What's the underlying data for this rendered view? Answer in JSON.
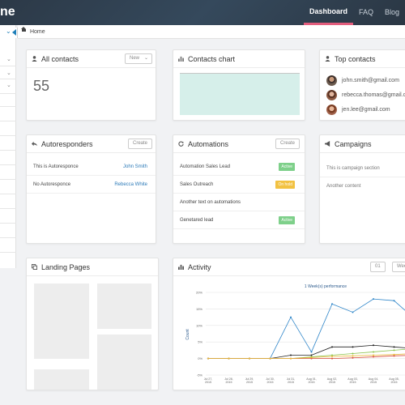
{
  "topbar": {
    "brand": "ne",
    "nav": [
      "Dashboard",
      "FAQ",
      "Blog"
    ]
  },
  "breadcrumb": {
    "home": "Home"
  },
  "all_contacts": {
    "title": "All contacts",
    "filter": "New",
    "count": "55"
  },
  "contacts_chart": {
    "title": "Contacts chart"
  },
  "top_contacts": {
    "title": "Top contacts",
    "items": [
      {
        "email": "john.smith@gmail.com"
      },
      {
        "email": "rebecca.thomas@gmail.com"
      },
      {
        "email": "jen.lee@gmail.com"
      }
    ]
  },
  "autoresponders": {
    "title": "Autoresponders",
    "button": "Create",
    "rows": [
      {
        "label": "This is Autoresponce",
        "owner": "John Smith"
      },
      {
        "label": "No Autoresponce",
        "owner": "Rebecca White"
      }
    ]
  },
  "automations": {
    "title": "Automations",
    "button": "Create",
    "rows": [
      {
        "label": "Automation Sales Lead",
        "status": "Active",
        "status_color": "#7ed08a"
      },
      {
        "label": "Sales Outreach",
        "status": "On hold",
        "status_color": "#f2c242"
      },
      {
        "label": "Another text on automations",
        "status": "",
        "status_color": ""
      },
      {
        "label": "Genetared lead",
        "status": "Active",
        "status_color": "#7ed08a"
      }
    ]
  },
  "campaigns": {
    "title": "Campaigns",
    "rows": [
      {
        "label": "This is campaign section"
      },
      {
        "label": "Another content"
      }
    ]
  },
  "landing_pages": {
    "title": "Landing Pages"
  },
  "activity": {
    "title": "Activity",
    "period": "01",
    "range": "Wee"
  },
  "chart_data": {
    "type": "line",
    "title": "1 Week(s) performance",
    "ylabel": "Count",
    "x": [
      "Jul 27, 2015",
      "Jul 28, 2015",
      "Jul 29, 2015",
      "Jul 30, 2015",
      "Jul 31, 2015",
      "Aug 01, 2015",
      "Aug 02, 2015",
      "Aug 03, 2015",
      "Aug 04, 2015",
      "Aug 05, 2015",
      "Aug 06, 2015",
      "Aug 07, 2015"
    ],
    "yticks": [
      "-5%",
      "0%",
      "5%",
      "10%",
      "15%",
      "20%"
    ],
    "ylim": [
      -5,
      20
    ],
    "series": [
      {
        "color": "#2f86c9",
        "values": [
          0,
          0,
          0,
          0,
          12.5,
          2,
          16.5,
          14,
          18,
          17.5,
          12,
          12
        ]
      },
      {
        "color": "#222222",
        "values": [
          0,
          0,
          0,
          0,
          1,
          1,
          3.5,
          3.5,
          4,
          3.5,
          3,
          3
        ]
      },
      {
        "color": "#8bc34a",
        "values": [
          0,
          0,
          0,
          0,
          0,
          0.5,
          1,
          1.5,
          2,
          2.5,
          3,
          3
        ]
      },
      {
        "color": "#d64a3a",
        "values": [
          0,
          0,
          0,
          0,
          0,
          0,
          0,
          0.2,
          0.5,
          0.8,
          1,
          1
        ]
      },
      {
        "color": "#e8b93a",
        "values": [
          0,
          0,
          0,
          0,
          0,
          0.3,
          0.6,
          0.8,
          1,
          1.2,
          1.5,
          1.5
        ]
      }
    ]
  }
}
